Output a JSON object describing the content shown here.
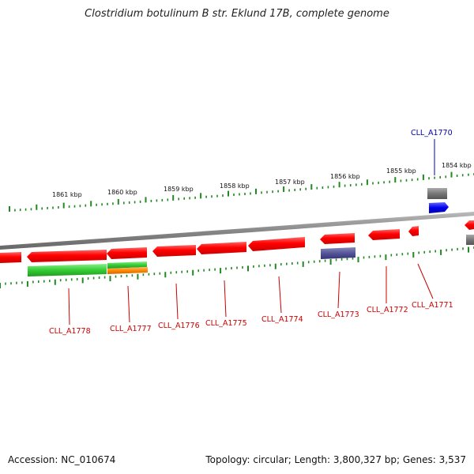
{
  "title": "Clostridium botulinum B str. Eklund 17B, complete genome",
  "footer": {
    "accession": "Accession: NC_010674",
    "stats": "Topology: circular; Length: 3,800,327 bp; Genes: 3,537"
  },
  "colors": {
    "gene_red": "#ff0000",
    "gene_green": "#33cc33",
    "gene_orange": "#ff8800",
    "gene_blue": "#0000ee",
    "gene_purple": "#555599",
    "gene_grey": "#777777",
    "tick_green": "#228822",
    "backbone": "#888888",
    "label_red": "#cc0000",
    "label_blue": "#0000aa"
  },
  "scale_ticks": [
    {
      "label": "1861 kbp"
    },
    {
      "label": "1860 kbp"
    },
    {
      "label": "1859 kbp"
    },
    {
      "label": "1858 kbp"
    },
    {
      "label": "1857 kbp"
    },
    {
      "label": "1856 kbp"
    },
    {
      "label": "1855 kbp"
    },
    {
      "label": "1854 kbp"
    }
  ],
  "gene_labels": [
    {
      "name": "CLL_A1770",
      "color": "blue"
    },
    {
      "name": "CLL_A1771",
      "color": "red"
    },
    {
      "name": "CLL_A1772",
      "color": "red"
    },
    {
      "name": "CLL_A1773",
      "color": "red"
    },
    {
      "name": "CLL_A1774",
      "color": "red"
    },
    {
      "name": "CLL_A1775",
      "color": "red"
    },
    {
      "name": "CLL_A1776",
      "color": "red"
    },
    {
      "name": "CLL_A1777",
      "color": "red"
    },
    {
      "name": "CLL_A1778",
      "color": "red"
    }
  ]
}
